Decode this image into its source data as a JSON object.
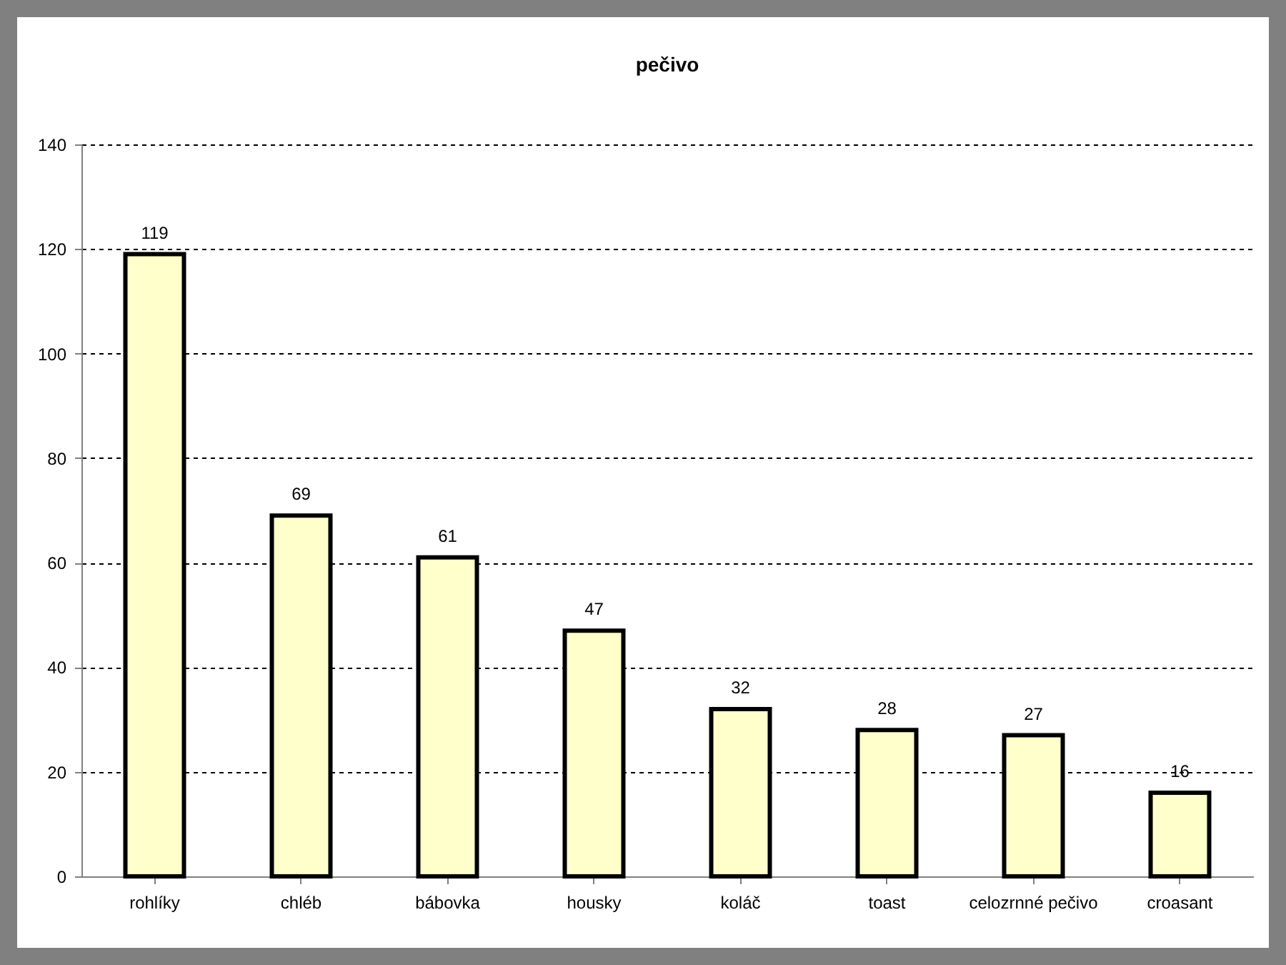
{
  "chart_data": {
    "type": "bar",
    "title": "pečivo",
    "categories": [
      "rohlíky",
      "chléb",
      "bábovka",
      "housky",
      "koláč",
      "toast",
      "celozrnné pečivo",
      "croasant"
    ],
    "values": [
      119,
      69,
      61,
      47,
      32,
      28,
      27,
      16
    ],
    "color": "#ffffcc",
    "ylim": [
      0,
      140
    ],
    "yticks": [
      0,
      20,
      40,
      60,
      80,
      100,
      120,
      140
    ],
    "grid": "y",
    "data_labels": true
  }
}
